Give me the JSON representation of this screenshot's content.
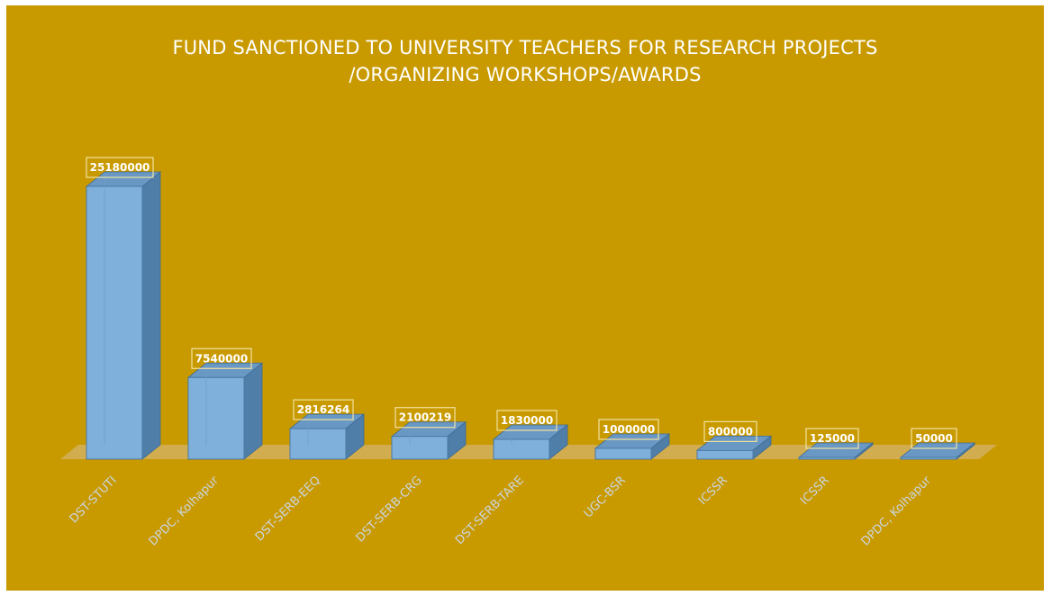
{
  "colors": {
    "background": "#c99a00",
    "bar_front": "#7fb0dc",
    "bar_side": "#4f7ea8",
    "bar_top": "#6a98c4",
    "label_border": "#f0e2a0",
    "floor": "#d4b36a"
  },
  "chart_data": {
    "type": "bar",
    "title_lines": [
      "FUND SANCTIONED TO UNIVERSITY TEACHERS FOR RESEARCH PROJECTS",
      "/ORGANIZING WORKSHOPS/AWARDS"
    ],
    "categories": [
      "DST-STUTI",
      "DPDC, Kolhapur",
      "DST-SERB-EEQ",
      "DST-SERB-CRG",
      "DST-SERB-TARE",
      "UGC-BSR",
      "ICSSR",
      "ICSSR",
      "DPDC, Kolhapur"
    ],
    "values": [
      25180000,
      7540000,
      2816264,
      2100219,
      1830000,
      1000000,
      800000,
      125000,
      50000
    ],
    "data_labels": [
      "25180000",
      "7540000",
      "2816264",
      "2100219",
      "1830000",
      "1000000",
      "800000",
      "125000",
      "50000"
    ],
    "grid": false,
    "legend": "none",
    "style": "3d-bar"
  }
}
